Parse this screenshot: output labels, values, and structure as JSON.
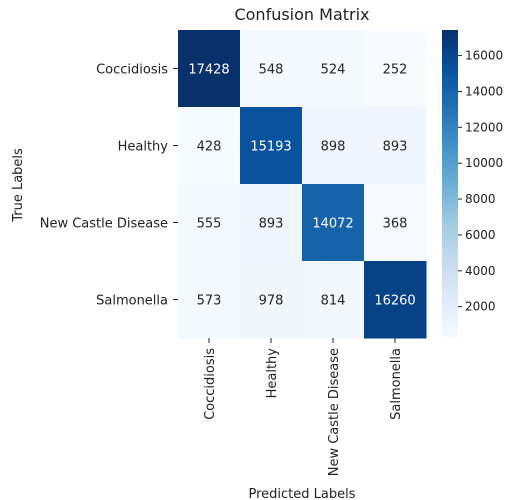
{
  "chart_data": {
    "type": "heatmap",
    "title": "Confusion Matrix",
    "xlabel": "Predicted Labels",
    "ylabel": "True Labels",
    "x_categories": [
      "Coccidiosis",
      "Healthy",
      "New Castle Disease",
      "Salmonella"
    ],
    "y_categories": [
      "Coccidiosis",
      "Healthy",
      "New Castle Disease",
      "Salmonella"
    ],
    "values": [
      [
        17428,
        548,
        524,
        252
      ],
      [
        428,
        15193,
        898,
        893
      ],
      [
        555,
        893,
        14072,
        368
      ],
      [
        573,
        978,
        814,
        16260
      ]
    ],
    "colormap": "Blues",
    "colorbar_range": [
      252,
      17428
    ],
    "colorbar_ticks": [
      2000,
      4000,
      6000,
      8000,
      10000,
      12000,
      14000,
      16000
    ]
  }
}
